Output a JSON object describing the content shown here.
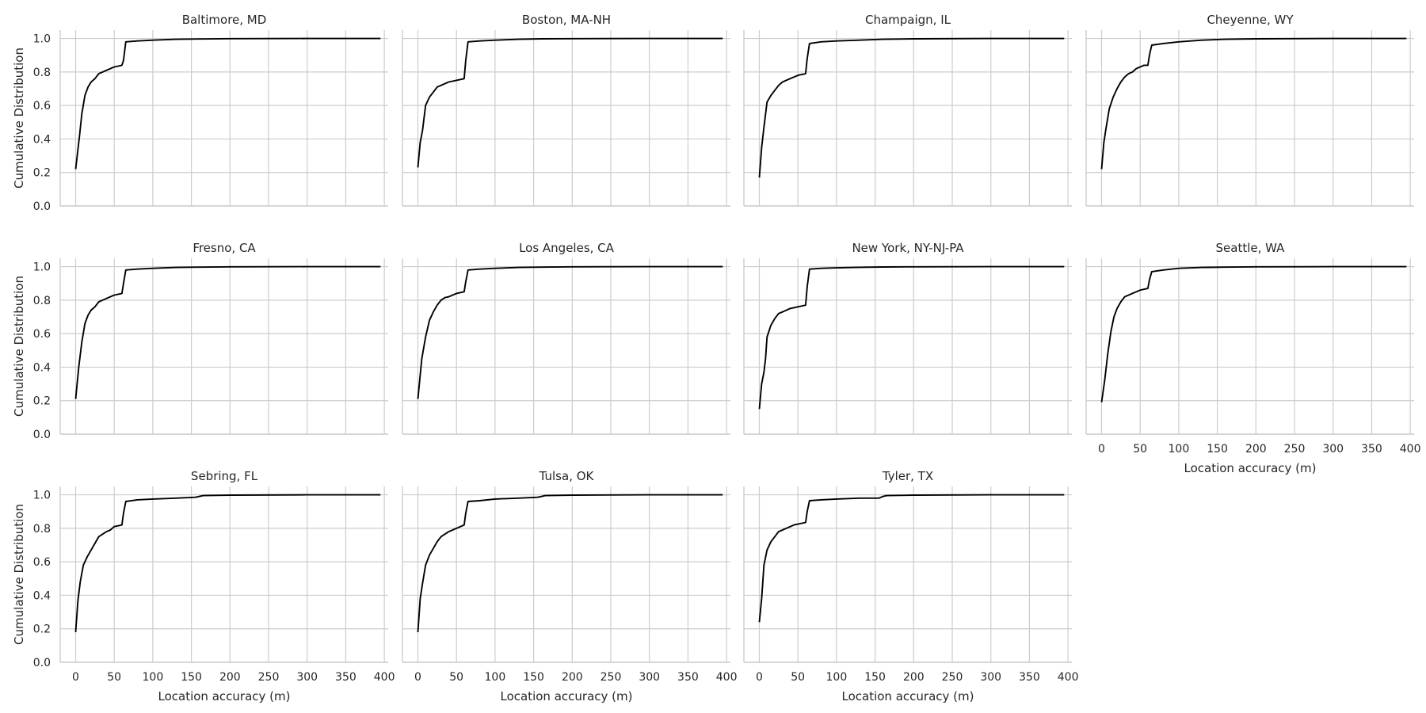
{
  "figure": {
    "x_label": "Location accuracy (m)",
    "y_label": "Cumulative Distribution"
  },
  "chart_data": {
    "type": "line",
    "layout": "small multiples, 3 rows x 4 columns",
    "xlim": [
      -20,
      405
    ],
    "ylim": [
      0,
      1.05
    ],
    "x_ticks": [
      0,
      50,
      100,
      150,
      200,
      250,
      300,
      350,
      400
    ],
    "y_ticks": [
      0.0,
      0.2,
      0.4,
      0.6,
      0.8,
      1.0
    ],
    "x_tick_labels": [
      "0",
      "50",
      "100",
      "150",
      "200",
      "250",
      "300",
      "350",
      "400"
    ],
    "y_tick_labels": [
      "0.0",
      "0.2",
      "0.4",
      "0.6",
      "0.8",
      "1.0"
    ],
    "grid": true,
    "line_color": "#000000",
    "grid_color": "#cccccc",
    "panels": [
      {
        "title": "Baltimore, MD",
        "x": [
          0,
          5,
          8,
          12,
          16,
          20,
          25,
          30,
          35,
          40,
          45,
          50,
          55,
          60,
          62,
          65,
          80,
          100,
          130,
          160,
          200,
          300,
          395
        ],
        "y": [
          0.22,
          0.42,
          0.55,
          0.66,
          0.71,
          0.74,
          0.76,
          0.79,
          0.8,
          0.81,
          0.82,
          0.83,
          0.835,
          0.84,
          0.87,
          0.98,
          0.985,
          0.99,
          0.995,
          0.997,
          0.999,
          1.0,
          1.0
        ]
      },
      {
        "title": "Boston, MA-NH",
        "x": [
          0,
          3,
          6,
          10,
          15,
          20,
          25,
          30,
          40,
          50,
          60,
          62,
          65,
          80,
          100,
          130,
          160,
          200,
          300,
          395
        ],
        "y": [
          0.23,
          0.38,
          0.45,
          0.6,
          0.65,
          0.68,
          0.71,
          0.72,
          0.74,
          0.75,
          0.76,
          0.87,
          0.98,
          0.985,
          0.99,
          0.995,
          0.998,
          0.999,
          1.0,
          1.0
        ]
      },
      {
        "title": "Champaign, IL",
        "x": [
          0,
          3,
          6,
          10,
          15,
          20,
          25,
          30,
          40,
          50,
          60,
          62,
          65,
          80,
          100,
          130,
          160,
          200,
          300,
          395
        ],
        "y": [
          0.17,
          0.35,
          0.47,
          0.62,
          0.66,
          0.69,
          0.72,
          0.74,
          0.76,
          0.78,
          0.79,
          0.88,
          0.97,
          0.98,
          0.985,
          0.99,
          0.995,
          0.998,
          1.0,
          1.0
        ]
      },
      {
        "title": "Cheyenne, WY",
        "x": [
          0,
          3,
          6,
          10,
          15,
          20,
          25,
          30,
          35,
          40,
          45,
          50,
          55,
          60,
          62,
          65,
          80,
          100,
          130,
          160,
          200,
          300,
          395
        ],
        "y": [
          0.22,
          0.38,
          0.47,
          0.58,
          0.65,
          0.7,
          0.74,
          0.77,
          0.79,
          0.8,
          0.82,
          0.83,
          0.84,
          0.84,
          0.9,
          0.96,
          0.97,
          0.98,
          0.99,
          0.995,
          0.998,
          1.0,
          1.0
        ]
      },
      {
        "title": "Fresno, CA",
        "x": [
          0,
          4,
          8,
          12,
          16,
          20,
          25,
          30,
          40,
          50,
          60,
          62,
          65,
          80,
          100,
          130,
          160,
          200,
          300,
          395
        ],
        "y": [
          0.21,
          0.4,
          0.55,
          0.66,
          0.71,
          0.74,
          0.76,
          0.79,
          0.81,
          0.83,
          0.84,
          0.9,
          0.98,
          0.985,
          0.99,
          0.995,
          0.997,
          0.999,
          1.0,
          1.0
        ]
      },
      {
        "title": "Los Angeles, CA",
        "x": [
          0,
          5,
          10,
          15,
          20,
          25,
          30,
          35,
          40,
          45,
          50,
          55,
          60,
          62,
          65,
          80,
          100,
          130,
          160,
          200,
          300,
          395
        ],
        "y": [
          0.21,
          0.45,
          0.58,
          0.68,
          0.73,
          0.77,
          0.8,
          0.815,
          0.82,
          0.83,
          0.84,
          0.845,
          0.85,
          0.91,
          0.98,
          0.985,
          0.99,
          0.995,
          0.997,
          0.999,
          1.0,
          1.0
        ]
      },
      {
        "title": "New York, NY-NJ-PA",
        "x": [
          0,
          3,
          6,
          8,
          10,
          15,
          20,
          25,
          30,
          40,
          50,
          60,
          62,
          65,
          80,
          100,
          130,
          160,
          200,
          300,
          395
        ],
        "y": [
          0.15,
          0.3,
          0.37,
          0.45,
          0.58,
          0.65,
          0.69,
          0.72,
          0.73,
          0.75,
          0.76,
          0.77,
          0.88,
          0.985,
          0.99,
          0.993,
          0.996,
          0.998,
          0.999,
          1.0,
          1.0
        ]
      },
      {
        "title": "Seattle, WA",
        "x": [
          0,
          4,
          8,
          12,
          16,
          20,
          25,
          30,
          40,
          50,
          60,
          62,
          65,
          80,
          100,
          130,
          160,
          200,
          300,
          395
        ],
        "y": [
          0.19,
          0.32,
          0.48,
          0.61,
          0.7,
          0.75,
          0.79,
          0.82,
          0.84,
          0.86,
          0.87,
          0.92,
          0.97,
          0.98,
          0.99,
          0.995,
          0.997,
          0.999,
          1.0,
          1.0
        ]
      },
      {
        "title": "Sebring, FL",
        "x": [
          0,
          3,
          6,
          10,
          15,
          20,
          25,
          30,
          40,
          45,
          50,
          55,
          60,
          62,
          65,
          80,
          100,
          130,
          155,
          160,
          165,
          200,
          300,
          395
        ],
        "y": [
          0.18,
          0.37,
          0.48,
          0.58,
          0.63,
          0.67,
          0.71,
          0.75,
          0.78,
          0.79,
          0.81,
          0.815,
          0.82,
          0.89,
          0.96,
          0.97,
          0.975,
          0.98,
          0.985,
          0.99,
          0.995,
          0.998,
          1.0,
          1.0
        ]
      },
      {
        "title": "Tulsa, OK",
        "x": [
          0,
          3,
          6,
          10,
          15,
          20,
          25,
          30,
          40,
          45,
          50,
          55,
          60,
          62,
          65,
          80,
          100,
          130,
          155,
          160,
          165,
          200,
          300,
          395
        ],
        "y": [
          0.18,
          0.38,
          0.47,
          0.58,
          0.64,
          0.68,
          0.72,
          0.75,
          0.78,
          0.79,
          0.8,
          0.81,
          0.82,
          0.89,
          0.96,
          0.965,
          0.975,
          0.98,
          0.985,
          0.99,
          0.995,
          0.998,
          1.0,
          1.0
        ]
      },
      {
        "title": "Tyler, TX",
        "x": [
          0,
          3,
          6,
          10,
          15,
          20,
          25,
          30,
          40,
          45,
          50,
          55,
          60,
          62,
          65,
          80,
          100,
          130,
          155,
          160,
          165,
          200,
          300,
          395
        ],
        "y": [
          0.24,
          0.38,
          0.58,
          0.67,
          0.72,
          0.75,
          0.78,
          0.79,
          0.81,
          0.82,
          0.825,
          0.83,
          0.835,
          0.9,
          0.965,
          0.97,
          0.975,
          0.98,
          0.98,
          0.99,
          0.995,
          0.998,
          1.0,
          1.0
        ]
      }
    ]
  }
}
